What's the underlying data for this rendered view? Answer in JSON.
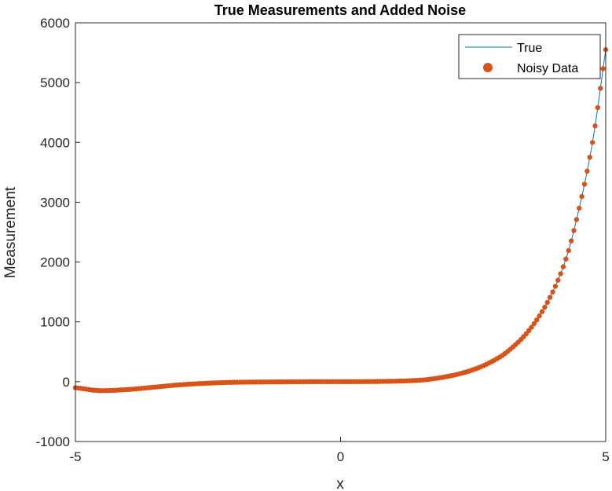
{
  "chart_data": {
    "type": "line",
    "title": "True Measurements and Added Noise",
    "xlabel": "x",
    "ylabel": "Measurement",
    "xlim": [
      -5,
      5
    ],
    "ylim": [
      -1000,
      6000
    ],
    "xticks": [
      -5,
      0,
      5
    ],
    "yticks": [
      -1000,
      0,
      1000,
      2000,
      3000,
      4000,
      5000,
      6000
    ],
    "xtick_labels": [
      "-5",
      "0",
      "5"
    ],
    "ytick_labels": [
      "-1000",
      "0",
      "1000",
      "2000",
      "3000",
      "4000",
      "5000",
      "6000"
    ],
    "grid": false,
    "legend_position": "top-right",
    "series": [
      {
        "name": "True",
        "style": "line",
        "color": "#0072BD",
        "x": [
          -5,
          -4.5,
          -4,
          -3.5,
          -3,
          -2.5,
          -2,
          -1.5,
          -1,
          -0.5,
          0,
          0.5,
          1,
          1.5,
          2,
          2.5,
          3,
          3.25,
          3.5,
          3.75,
          4,
          4.25,
          4.5,
          4.75,
          5
        ],
        "y": [
          -100,
          -150,
          -130,
          -90,
          -50,
          -25,
          -10,
          -5,
          -2,
          0,
          0,
          2,
          8,
          25,
          85,
          200,
          410,
          580,
          800,
          1100,
          1500,
          2050,
          2900,
          4000,
          5550
        ]
      },
      {
        "name": "Noisy Data",
        "style": "markers",
        "color": "#D95319",
        "x": [
          -5,
          -4.5,
          -4,
          -3.5,
          -3,
          -2.5,
          -2,
          -1.5,
          -1,
          -0.5,
          0,
          0.5,
          1,
          1.5,
          2,
          2.5,
          3,
          3.25,
          3.5,
          3.75,
          4,
          4.25,
          4.5,
          4.75,
          5
        ],
        "y": [
          -100,
          -150,
          -130,
          -90,
          -50,
          -25,
          -10,
          -5,
          -2,
          0,
          0,
          2,
          8,
          25,
          85,
          200,
          410,
          580,
          800,
          1100,
          1500,
          2050,
          2900,
          4000,
          5550
        ]
      }
    ]
  }
}
